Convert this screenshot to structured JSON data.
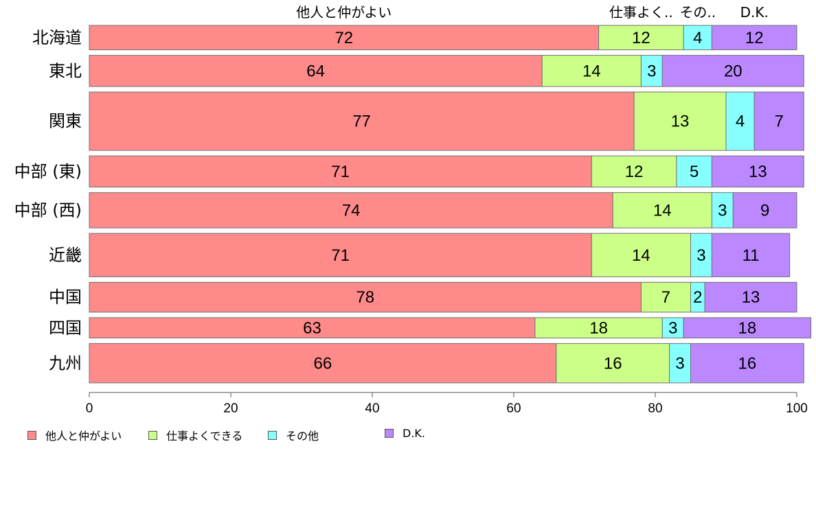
{
  "chart_data": {
    "type": "bar",
    "orientation": "horizontal",
    "stacked": true,
    "categories": [
      "北海道",
      "東北",
      "関東",
      "中部 (東)",
      "中部 (西)",
      "近畿",
      "中国",
      "四国",
      "九州"
    ],
    "series": [
      {
        "name": "他人と仲がよい",
        "top_label": "他人と仲がよい",
        "color": "#ff8a8a",
        "values": [
          72,
          64,
          77,
          71,
          74,
          71,
          78,
          63,
          66
        ]
      },
      {
        "name": "仕事よくできる",
        "top_label": "仕事よく..",
        "color": "#ccff88",
        "values": [
          12,
          14,
          13,
          12,
          14,
          14,
          7,
          18,
          16
        ]
      },
      {
        "name": "その他",
        "top_label": "その..",
        "color": "#88ffff",
        "values": [
          4,
          3,
          4,
          5,
          3,
          3,
          2,
          3,
          3
        ]
      },
      {
        "name": "D.K.",
        "top_label": "D.K.",
        "color": "#bb88ff",
        "values": [
          12,
          20,
          7,
          13,
          9,
          11,
          13,
          18,
          16
        ]
      }
    ],
    "xlim": [
      0,
      100
    ],
    "xticks": [
      0,
      20,
      40,
      60,
      80,
      100
    ],
    "bar_widths_relative": [
      36,
      46,
      86,
      46,
      52,
      64,
      44,
      30,
      58
    ],
    "legend_position": "bottom-left",
    "grid": false
  }
}
